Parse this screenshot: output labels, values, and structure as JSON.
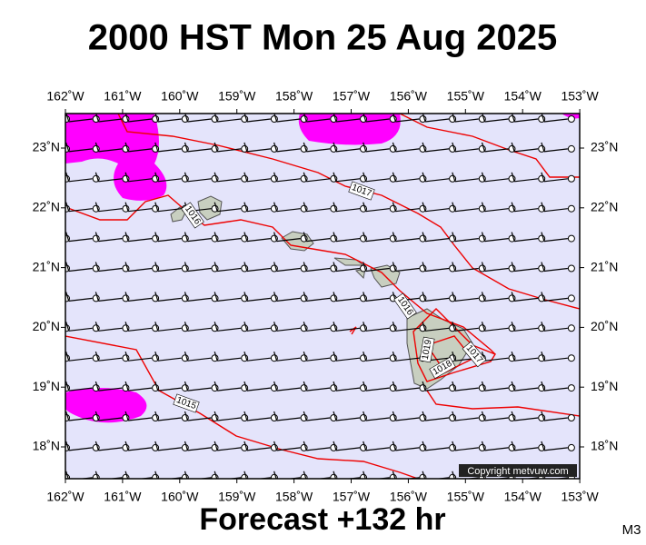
{
  "title": "2000 HST Mon 25 Aug 2025",
  "footer": "Forecast +132 hr",
  "model": "M3",
  "map": {
    "copyright": "Copyright metvuw.com",
    "lon_labels": [
      "162˚W",
      "161˚W",
      "160˚W",
      "159˚W",
      "158˚W",
      "157˚W",
      "156˚W",
      "155˚W",
      "154˚W",
      "153˚W"
    ],
    "lat_labels": [
      "23˚N",
      "22˚N",
      "21˚N",
      "20˚N",
      "19˚N",
      "18˚N"
    ],
    "isobar_labels": [
      "1017",
      "1016",
      "1016",
      "1015",
      "1019",
      "1018",
      "1017"
    ]
  }
}
